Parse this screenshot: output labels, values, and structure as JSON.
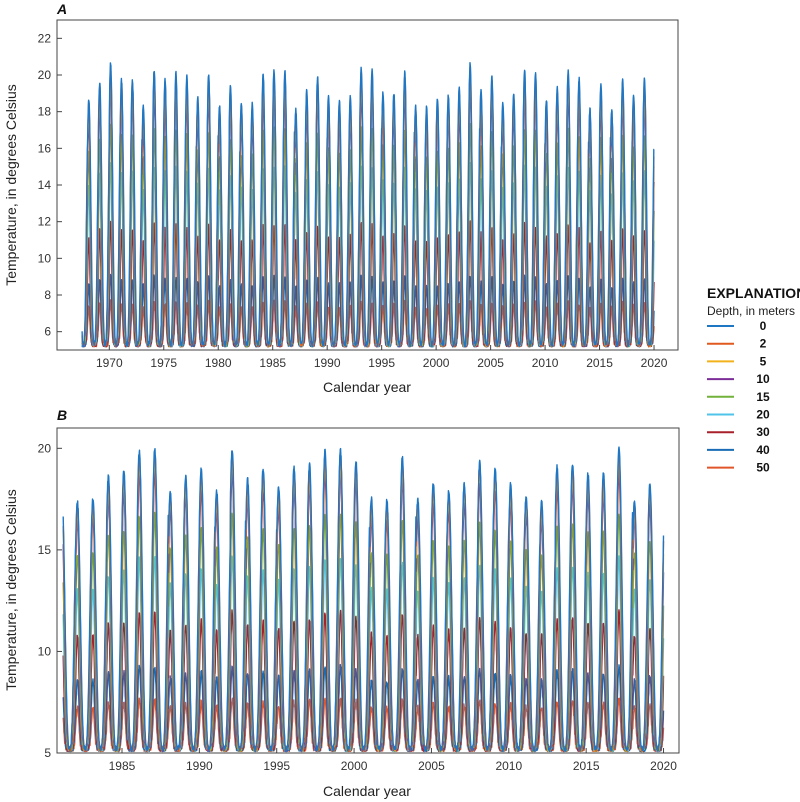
{
  "legend": {
    "title": "EXPLANATION",
    "subtitle": "Depth, in meters"
  },
  "series_colors": {
    "0": "#1f77c4",
    "2": "#e05a20",
    "5": "#f2b21b",
    "10": "#7b2d98",
    "15": "#72b23a",
    "20": "#4fc3ea",
    "30": "#a8202a",
    "40": "#1a6db5",
    "50": "#e0562a"
  },
  "chart_data": [
    {
      "type": "line",
      "panel_label": "A",
      "xlabel": "Calendar year",
      "ylabel": "Temperature, in degrees Celsius",
      "xlim": [
        1965.2,
        2022.2
      ],
      "ylim": [
        5,
        23
      ],
      "xticks": [
        1970,
        1975,
        1980,
        1985,
        1990,
        1995,
        2000,
        2005,
        2010,
        2015,
        2020
      ],
      "yticks": [
        6,
        8,
        10,
        12,
        14,
        16,
        18,
        20,
        22
      ],
      "x_start": 1967.5,
      "x_end": 2020.0,
      "series": [
        {
          "name": "0",
          "min": 5.3,
          "max": 19.5
        },
        {
          "name": "2",
          "min": 5.3,
          "max": 19.3
        },
        {
          "name": "5",
          "min": 5.3,
          "max": 19.0
        },
        {
          "name": "10",
          "min": 5.3,
          "max": 18.5
        },
        {
          "name": "15",
          "min": 5.3,
          "max": 16.5
        },
        {
          "name": "20",
          "min": 5.3,
          "max": 14.5
        },
        {
          "name": "30",
          "min": 5.3,
          "max": 11.5
        },
        {
          "name": "40",
          "min": 5.3,
          "max": 8.8
        },
        {
          "name": "50",
          "min": 5.3,
          "max": 7.5
        }
      ]
    },
    {
      "type": "line",
      "panel_label": "B",
      "xlabel": "Calendar year",
      "ylabel": "Temperature, in degrees Celsius",
      "xlim": [
        1980.8,
        2021.0
      ],
      "ylim": [
        5,
        21
      ],
      "xticks": [
        1985,
        1990,
        1995,
        2000,
        2005,
        2010,
        2015,
        2020
      ],
      "yticks": [
        5,
        10,
        15,
        20
      ],
      "x_start": 1981.2,
      "x_end": 2020.0,
      "series": [
        {
          "name": "0",
          "min": 5.2,
          "max": 19.0
        },
        {
          "name": "2",
          "min": 5.2,
          "max": 18.8
        },
        {
          "name": "5",
          "min": 5.2,
          "max": 18.5
        },
        {
          "name": "10",
          "min": 5.2,
          "max": 18.0
        },
        {
          "name": "15",
          "min": 5.2,
          "max": 16.0
        },
        {
          "name": "20",
          "min": 5.2,
          "max": 14.0
        },
        {
          "name": "30",
          "min": 5.2,
          "max": 11.5
        },
        {
          "name": "40",
          "min": 5.2,
          "max": 9.0
        },
        {
          "name": "50",
          "min": 5.2,
          "max": 7.5
        }
      ]
    }
  ]
}
